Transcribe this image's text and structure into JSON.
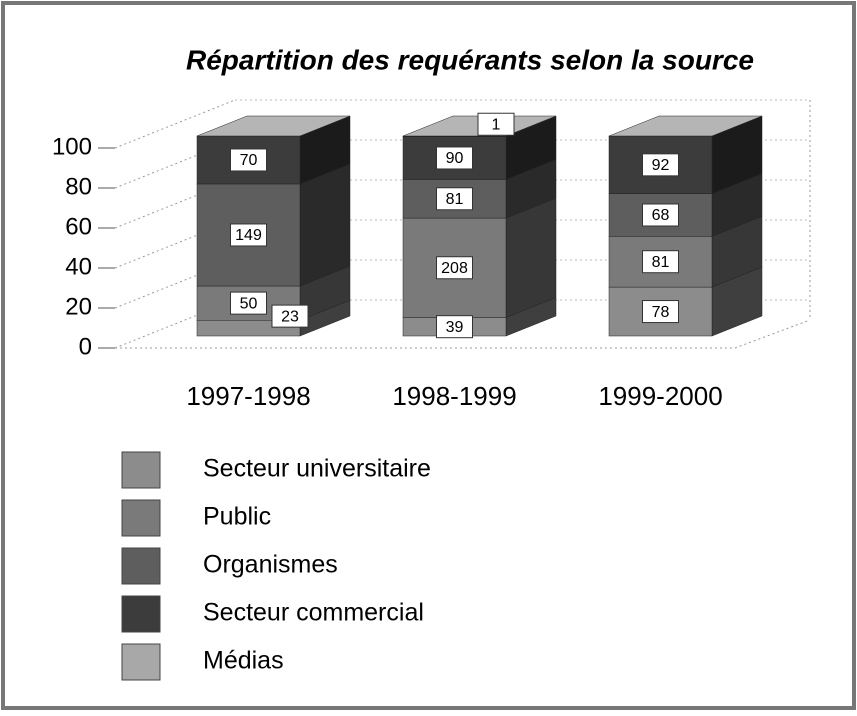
{
  "chart_data": {
    "type": "bar",
    "stacking": "percent",
    "title": "Répartition des requérants selon la source",
    "categories": [
      "1997-1998",
      "1998-1999",
      "1999-2000"
    ],
    "series": [
      {
        "name": "Secteur universitaire",
        "color": "#8c8c8c",
        "values": [
          23,
          39,
          78
        ]
      },
      {
        "name": "Public",
        "color": "#7a7a7a",
        "values": [
          50,
          208,
          81
        ]
      },
      {
        "name": "Organismes",
        "color": "#5e5e5e",
        "values": [
          149,
          81,
          68
        ]
      },
      {
        "name": "Secteur commercial",
        "color": "#3c3c3c",
        "values": [
          70,
          90,
          92
        ]
      },
      {
        "name": "Médias",
        "color": "#a8a8a8",
        "values": [
          null,
          1,
          null
        ]
      }
    ],
    "ylim": [
      0,
      100
    ],
    "yticks": [
      0,
      20,
      40,
      60,
      80,
      100
    ],
    "grid": true
  }
}
